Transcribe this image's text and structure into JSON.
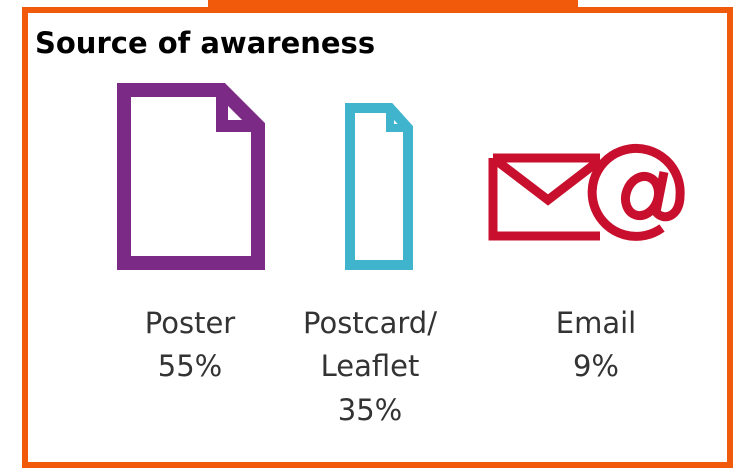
{
  "title": "Source of awareness",
  "items": [
    {
      "label": [
        "Poster"
      ],
      "percent": "55%"
    },
    {
      "label": [
        "Postcard/",
        "Leaflet"
      ],
      "percent": "35%"
    },
    {
      "label": [
        "Email"
      ],
      "percent": "9%"
    }
  ]
}
